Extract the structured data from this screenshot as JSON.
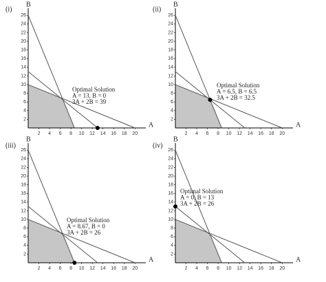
{
  "chart_data": [
    {
      "type": "line",
      "panel_label": "(i)",
      "xlabel": "A",
      "ylabel": "B",
      "xlim": [
        0,
        21
      ],
      "ylim": [
        0,
        27
      ],
      "xticks": [
        2,
        4,
        6,
        8,
        10,
        12,
        14,
        16,
        18,
        20
      ],
      "yticks": [
        2,
        4,
        6,
        8,
        10,
        12,
        14,
        16,
        18,
        20,
        22,
        24,
        26
      ],
      "series": [
        {
          "color": "#555555",
          "x": [
            0,
            8.67
          ],
          "values": [
            26,
            0
          ]
        },
        {
          "color": "#555555",
          "x": [
            0,
            13
          ],
          "values": [
            13,
            0
          ]
        },
        {
          "color": "#555555",
          "x": [
            0,
            20
          ],
          "values": [
            10,
            0
          ]
        }
      ],
      "region": {
        "color": "#c6c6c6",
        "x": [
          0,
          0,
          6.4,
          8.67
        ],
        "values": [
          0,
          10,
          6.8,
          0
        ]
      },
      "point": {
        "x": 13,
        "y": 0
      },
      "annotation": [
        "Optimal Solution",
        "A = 13, B = 0",
        "3A + 2B = 39"
      ]
    },
    {
      "type": "line",
      "panel_label": "(ii)",
      "xlabel": "A",
      "ylabel": "B",
      "xlim": [
        0,
        21
      ],
      "ylim": [
        0,
        27
      ],
      "xticks": [
        2,
        4,
        6,
        8,
        10,
        12,
        14,
        16,
        18,
        20
      ],
      "yticks": [
        2,
        4,
        6,
        8,
        10,
        12,
        14,
        16,
        18,
        20,
        22,
        24,
        26
      ],
      "series": [
        {
          "color": "#555555",
          "x": [
            0,
            8.67
          ],
          "values": [
            26,
            0
          ]
        },
        {
          "color": "#555555",
          "x": [
            0,
            13
          ],
          "values": [
            13,
            0
          ]
        },
        {
          "color": "#555555",
          "x": [
            0,
            20
          ],
          "values": [
            10,
            0
          ]
        }
      ],
      "region": {
        "color": "#c6c6c6",
        "x": [
          0,
          0,
          6.4,
          8.67
        ],
        "values": [
          0,
          10,
          6.8,
          0
        ]
      },
      "point": {
        "x": 6.5,
        "y": 6.5
      },
      "annotation": [
        "Optimal Solution",
        "A = 6.5, B = 6.5",
        "3A + 2B = 32.5"
      ]
    },
    {
      "type": "line",
      "panel_label": "(iii)",
      "xlabel": "A",
      "ylabel": "B",
      "xlim": [
        0,
        21
      ],
      "ylim": [
        0,
        27
      ],
      "xticks": [
        2,
        4,
        6,
        8,
        10,
        12,
        14,
        16,
        18,
        20
      ],
      "yticks": [
        2,
        4,
        6,
        8,
        10,
        12,
        14,
        16,
        18,
        20,
        22,
        24,
        26
      ],
      "series": [
        {
          "color": "#555555",
          "x": [
            0,
            8.67
          ],
          "values": [
            26,
            0
          ]
        },
        {
          "color": "#555555",
          "x": [
            0,
            13
          ],
          "values": [
            13,
            0
          ]
        },
        {
          "color": "#555555",
          "x": [
            0,
            20
          ],
          "values": [
            10,
            0
          ]
        }
      ],
      "region": {
        "color": "#c6c6c6",
        "x": [
          0,
          0,
          6.4,
          8.67
        ],
        "values": [
          0,
          10,
          6.8,
          0
        ]
      },
      "point": {
        "x": 8.67,
        "y": 0
      },
      "annotation": [
        "Optimal Solution",
        "A = 8.67, B = 0",
        "3A + 2B = 26"
      ]
    },
    {
      "type": "line",
      "panel_label": "(iv)",
      "xlabel": "A",
      "ylabel": "B",
      "xlim": [
        0,
        21
      ],
      "ylim": [
        0,
        27
      ],
      "xticks": [
        2,
        4,
        6,
        8,
        10,
        12,
        14,
        16,
        18,
        20
      ],
      "yticks": [
        2,
        4,
        6,
        8,
        10,
        12,
        14,
        16,
        18,
        20,
        22,
        24,
        26
      ],
      "series": [
        {
          "color": "#555555",
          "x": [
            0,
            8.67
          ],
          "values": [
            26,
            0
          ]
        },
        {
          "color": "#555555",
          "x": [
            0,
            13
          ],
          "values": [
            13,
            0
          ]
        },
        {
          "color": "#555555",
          "x": [
            0,
            20
          ],
          "values": [
            10,
            0
          ]
        }
      ],
      "region": {
        "color": "#c6c6c6",
        "x": [
          0,
          0,
          6.4,
          8.67
        ],
        "values": [
          0,
          10,
          6.8,
          0
        ]
      },
      "point": {
        "x": 0,
        "y": 13
      },
      "annotation": [
        "Optimal Solution",
        "A = 0, B = 13",
        "3A + 2B = 26"
      ]
    }
  ]
}
